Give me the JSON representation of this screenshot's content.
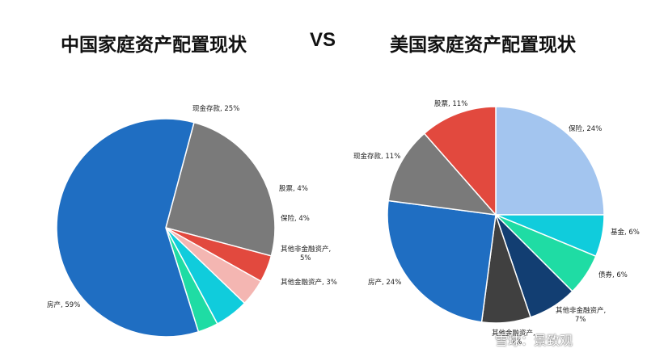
{
  "header": {
    "left_title": "中国家庭资产配置现状",
    "vs": "VS",
    "right_title": "美国家庭资产配置现状"
  },
  "watermark": "雪球：景致观",
  "chart_data": [
    {
      "type": "pie",
      "title": "中国家庭资产配置现状",
      "slices": [
        {
          "label": "现金存款, 25%",
          "name": "现金存款",
          "value": 25,
          "color": "#7a7a7a"
        },
        {
          "label": "股票, 4%",
          "name": "股票",
          "value": 4,
          "color": "#e2493e"
        },
        {
          "label": "保险, 4%",
          "name": "保险",
          "value": 4,
          "color": "#f4b6b2"
        },
        {
          "label": "其他非金融资产,|5%",
          "name": "其他非金融资产",
          "value": 5,
          "color": "#10ccdc"
        },
        {
          "label": "其他金融资产, 3%",
          "name": "其他金融资产",
          "value": 3,
          "color": "#1fdca4"
        },
        {
          "label": "房产, 59%",
          "name": "房产",
          "value": 59,
          "color": "#1f6ec2"
        }
      ]
    },
    {
      "type": "pie",
      "title": "美国家庭资产配置现状",
      "slices": [
        {
          "label": "保险, 24%",
          "name": "保险",
          "value": 24,
          "color": "#a3c5ef"
        },
        {
          "label": "基金, 6%",
          "name": "基金",
          "value": 6,
          "color": "#10ccdc"
        },
        {
          "label": "债券, 6%",
          "name": "债券",
          "value": 6,
          "color": "#1fdca4"
        },
        {
          "label": "其他非金融资产,|7%",
          "name": "其他非金融资产",
          "value": 7,
          "color": "#123e72"
        },
        {
          "label": "其他金融资产,|7%",
          "name": "其他金融资产",
          "value": 7,
          "color": "#404040"
        },
        {
          "label": "房产, 24%",
          "name": "房产",
          "value": 24,
          "color": "#1f6ec2"
        },
        {
          "label": "现金存款, 11%",
          "name": "现金存款",
          "value": 11,
          "color": "#7a7a7a"
        },
        {
          "label": "股票, 11%",
          "name": "股票",
          "value": 11,
          "color": "#e2493e"
        }
      ]
    }
  ]
}
